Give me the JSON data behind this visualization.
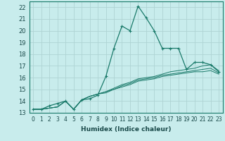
{
  "xlabel": "Humidex (Indice chaleur)",
  "bg_color": "#c8ecec",
  "grid_color": "#aed4d4",
  "line_color": "#1a7a6a",
  "xlim": [
    -0.5,
    23.5
  ],
  "ylim": [
    13,
    22.5
  ],
  "xticks": [
    0,
    1,
    2,
    3,
    4,
    5,
    6,
    7,
    8,
    9,
    10,
    11,
    12,
    13,
    14,
    15,
    16,
    17,
    18,
    19,
    20,
    21,
    22,
    23
  ],
  "yticks": [
    13,
    14,
    15,
    16,
    17,
    18,
    19,
    20,
    21,
    22
  ],
  "main_line_x": [
    0,
    1,
    2,
    3,
    4,
    5,
    6,
    7,
    8,
    9,
    10,
    11,
    12,
    13,
    14,
    15,
    16,
    17,
    18,
    19,
    20,
    21,
    22,
    23
  ],
  "main_line_y": [
    13.3,
    13.3,
    13.6,
    13.8,
    14.0,
    13.3,
    14.1,
    14.2,
    14.5,
    16.1,
    18.5,
    20.4,
    20.0,
    22.1,
    21.1,
    20.0,
    18.5,
    18.5,
    18.5,
    16.7,
    17.3,
    17.3,
    17.1,
    16.5
  ],
  "flat_lines": [
    [
      13.3,
      13.3,
      13.4,
      13.5,
      14.0,
      13.3,
      14.1,
      14.4,
      14.6,
      14.8,
      15.1,
      15.4,
      15.6,
      15.9,
      16.0,
      16.1,
      16.3,
      16.5,
      16.6,
      16.7,
      16.8,
      17.0,
      17.1,
      16.6
    ],
    [
      13.3,
      13.3,
      13.4,
      13.5,
      14.0,
      13.3,
      14.1,
      14.4,
      14.6,
      14.8,
      15.0,
      15.3,
      15.5,
      15.8,
      15.9,
      16.0,
      16.2,
      16.3,
      16.4,
      16.5,
      16.6,
      16.7,
      16.8,
      16.4
    ],
    [
      13.3,
      13.3,
      13.4,
      13.5,
      14.0,
      13.3,
      14.1,
      14.4,
      14.6,
      14.7,
      15.0,
      15.2,
      15.4,
      15.7,
      15.8,
      15.9,
      16.1,
      16.2,
      16.3,
      16.4,
      16.5,
      16.5,
      16.6,
      16.3
    ]
  ],
  "xlabel_fontsize": 6.5,
  "tick_fontsize": 5.5,
  "ytick_fontsize": 6.0
}
